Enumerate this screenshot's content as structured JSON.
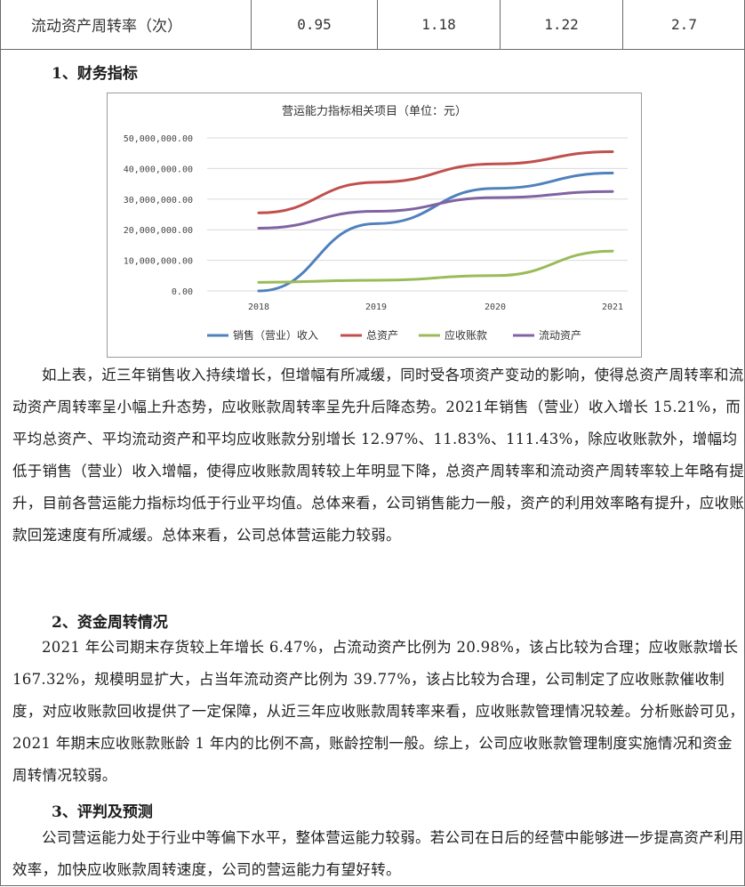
{
  "table_row": {
    "label": "流动资产周转率（次）",
    "values": [
      "0.95",
      "1.18",
      "1.22",
      "2.7"
    ]
  },
  "section1": {
    "heading": "1、财务指标",
    "paragraph": "如上表，近三年销售收入持续增长，但增幅有所减缓，同时受各项资产变动的影响，使得总资产周转率和流动资产周转率呈小幅上升态势，应收账款周转率呈先升后降态势。2021年销售（营业）收入增长 15.21%，而平均总资产、平均流动资产和平均应收账款分别增长 12.97%、11.83%、111.43%，除应收账款外，增幅均低于销售（营业）收入增幅，使得应收账款周转较上年明显下降，总资产周转率和流动资产周转率较上年略有提升，目前各营运能力指标均低于行业平均值。总体来看，公司销售能力一般，资产的利用效率略有提升，应收账款回笼速度有所减缓。总体来看，公司总体营运能力较弱。"
  },
  "section2": {
    "heading": "2、资金周转情况",
    "paragraph": "2021 年公司期末存货较上年增长 6.47%，占流动资产比例为 20.98%，该占比较为合理；应收账款增长 167.32%，规模明显扩大，占当年流动资产比例为 39.77%，该占比较为合理，公司制定了应收账款催收制度，对应收账款回收提供了一定保障，从近三年应收账款周转率来看，应收账款管理情况较差。分析账龄可见，2021 年期末应收账款账龄 1 年内的比例不高，账龄控制一般。综上，公司应收账款管理制度实施情况和资金周转情况较弱。"
  },
  "section3": {
    "heading": "3、评判及预测",
    "paragraph": "公司营运能力处于行业中等偏下水平，整体营运能力较弱。若公司在日后的经营中能够进一步提高资产利用效率，加快应收账款周转速度，公司的营运能力有望好转。"
  },
  "chart_data": {
    "type": "line",
    "title": "营运能力指标相关项目（单位：元）",
    "categories": [
      "2018",
      "2019",
      "2020",
      "2021"
    ],
    "y_ticks": [
      "0.00",
      "10,000,000.00",
      "20,000,000.00",
      "30,000,000.00",
      "40,000,000.00",
      "50,000,000.00"
    ],
    "ylim": [
      0,
      50000000
    ],
    "series": [
      {
        "name": "销售（营业）收入",
        "color": "#4f81bd",
        "values": [
          0,
          22000000,
          33500000,
          38500000
        ]
      },
      {
        "name": "总资产",
        "color": "#c0504d",
        "values": [
          25500000,
          35500000,
          41500000,
          45500000
        ]
      },
      {
        "name": "应收账款",
        "color": "#9bbb59",
        "values": [
          2800000,
          3500000,
          5000000,
          13000000
        ]
      },
      {
        "name": "流动资产",
        "color": "#8064a2",
        "values": [
          20500000,
          26000000,
          30500000,
          32500000
        ]
      }
    ],
    "legend_position": "bottom",
    "grid": true
  }
}
